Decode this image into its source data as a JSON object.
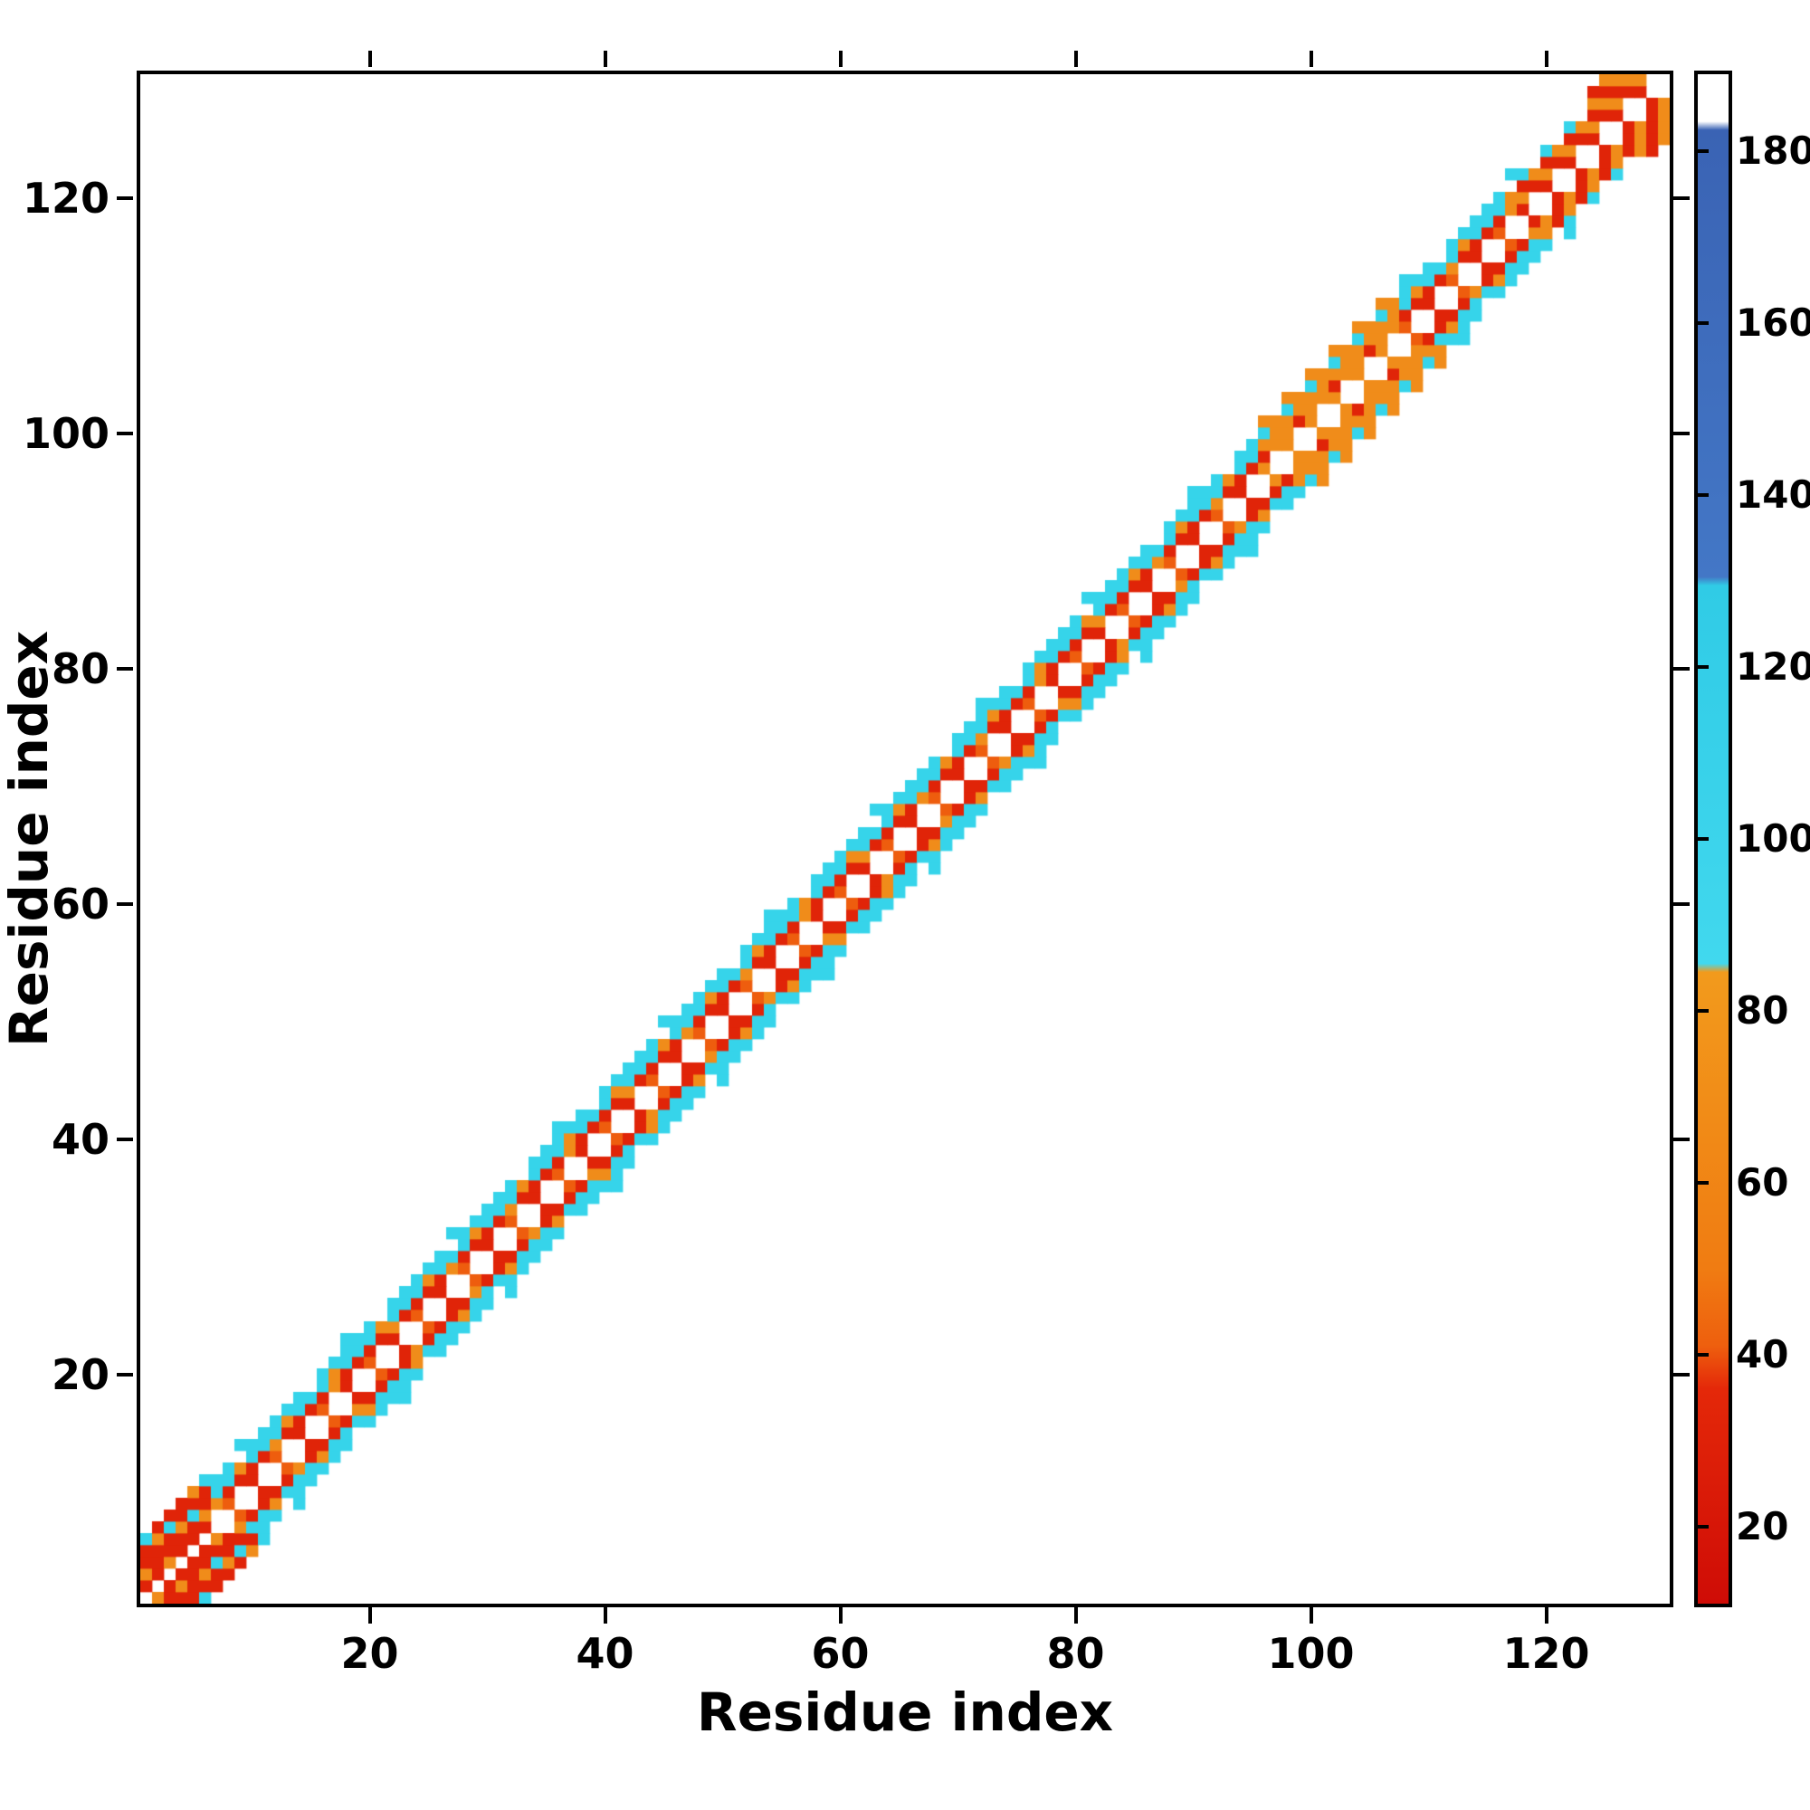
{
  "figure": {
    "title": "",
    "xlabel": "Residue index",
    "ylabel": "Residue index"
  },
  "chart_data": {
    "type": "heatmap",
    "title": "",
    "xlabel": "Residue index",
    "ylabel": "Residue index",
    "x_range": [
      1,
      130
    ],
    "y_range": [
      1,
      130
    ],
    "x_ticks": [
      20,
      40,
      60,
      80,
      100,
      120
    ],
    "y_ticks": [
      20,
      40,
      60,
      80,
      100,
      120
    ],
    "grid": false,
    "background": "#ffffff",
    "description": "Protein residue-residue contact map. Contacts form a band of roughly +/-4 residues around the main diagonal from residue 1 to 130. The exact diagonal is white; first/second off-diagonals are red/orange, outer band edge is cyan. An orange-dominated cluster occurs near residues 96-107 and a dense red/orange blob fills the top-right corner (residues ~118-130). A small red/orange/cyan blob sits at the bottom-left corner (residues 1-6).",
    "colorbar": {
      "position": "right",
      "range": [
        11,
        189
      ],
      "ticks": [
        20,
        40,
        60,
        80,
        100,
        120,
        140,
        160,
        180
      ],
      "stops": [
        {
          "value": 11,
          "color": "#cf0c06"
        },
        {
          "value": 36,
          "color": "#e42809"
        },
        {
          "value": 41,
          "color": "#ee5f0e"
        },
        {
          "value": 50,
          "color": "#f07c12"
        },
        {
          "value": 84.5,
          "color": "#f29a1c"
        },
        {
          "value": 85.5,
          "color": "#41d8ee"
        },
        {
          "value": 129.5,
          "color": "#30cbe6"
        },
        {
          "value": 130.5,
          "color": "#4377c6"
        },
        {
          "value": 182.5,
          "color": "#3a63b4"
        },
        {
          "value": 183.5,
          "color": "#ffffff"
        },
        {
          "value": 189,
          "color": "#ffffff"
        }
      ]
    },
    "palette": {
      "red": "#e02408",
      "redorange": "#ee5d0e",
      "orange": "#f08c1a",
      "cyan": "#36d4ea"
    },
    "pattern": {
      "band_halfwidth": 4,
      "diagonal_color": null,
      "offsets": {
        "1": {
          "style": "dashed",
          "colors": [
            "red",
            "redorange"
          ]
        },
        "2": {
          "style": "solid",
          "colors": [
            "red"
          ],
          "accent": "orange"
        },
        "3": {
          "style": "solid",
          "colors": [
            "cyan"
          ],
          "accent": "orange"
        },
        "4": {
          "style": "solid_with_gaps",
          "colors": [
            "cyan"
          ]
        },
        "5": {
          "style": "sparse",
          "colors": [
            "cyan"
          ]
        }
      },
      "regions": {
        "bottom_left_blob": {
          "s_min": 1,
          "s_max": 6
        },
        "orange_patch": {
          "s_min": 96,
          "s_max": 107
        },
        "top_right_red": {
          "s_min": 118,
          "dense_s_min": 124,
          "s_max": 130
        }
      }
    }
  }
}
